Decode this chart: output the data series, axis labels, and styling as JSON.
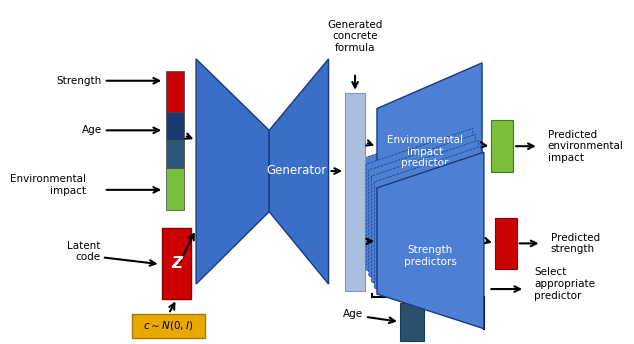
{
  "bg_color": "#ffffff",
  "blue_dark": "#3a6ec8",
  "blue_medium": "#4d7fd4",
  "blue_light": "#aabfdf",
  "blue_steel": "#2a5070",
  "red": "#cc0000",
  "green": "#7abf3a",
  "gold": "#e8a800",
  "white": "#ffffff",
  "black": "#000000",
  "generator_label": "Generator",
  "gen_concrete_label": "Generated\nconcrete\nformula",
  "env_predictor_label": "Environmental\nimpact\npredictor",
  "strength_predictors_label": "Strength\npredictors",
  "latent_z": "Z"
}
